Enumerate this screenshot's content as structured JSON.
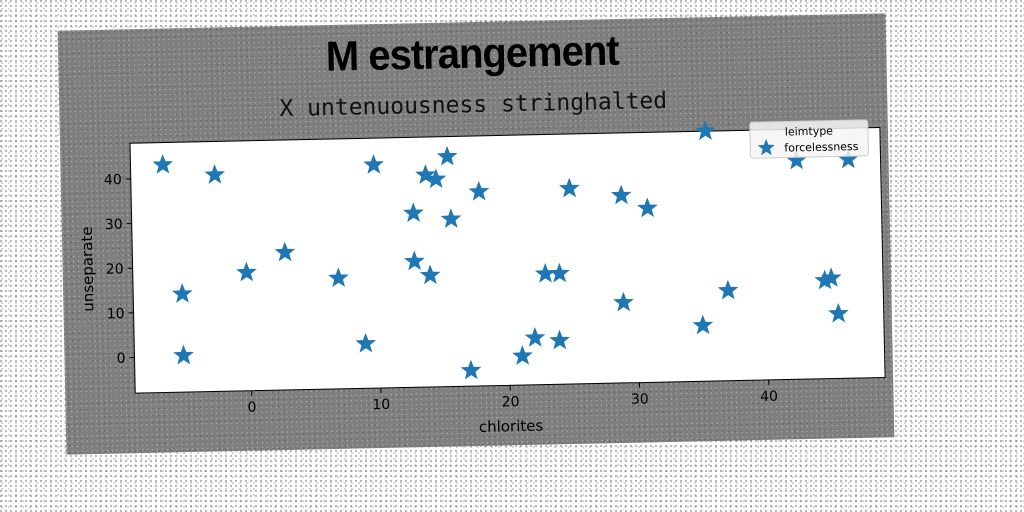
{
  "chart_data": {
    "type": "scatter",
    "suptitle": "M estrangement",
    "title": "X untenuousness stringhalted",
    "xlabel": "chlorites",
    "ylabel": "unseparate",
    "xlim": [
      -9,
      49
    ],
    "ylim": [
      -8,
      48
    ],
    "xticks": [
      0,
      10,
      20,
      30,
      40
    ],
    "yticks": [
      0,
      10,
      20,
      30,
      40
    ],
    "grid": false,
    "legend": {
      "title": "leimtype",
      "placement": "top-right",
      "entries": [
        "forcelessness"
      ]
    },
    "series": [
      {
        "name": "forcelessness",
        "color": "#1f77b4",
        "marker": "star",
        "x": [
          -6.5,
          -2.5,
          -5.2,
          -5.2,
          -0.2,
          2.8,
          6.9,
          8.9,
          9.8,
          12.8,
          12.8,
          13.8,
          14.0,
          14.6,
          15.5,
          15.7,
          17.9,
          17.0,
          21.0,
          22.0,
          22.9,
          23.9,
          24.0,
          24.9,
          28.9,
          28.9,
          30.9,
          35.0,
          35.5,
          37.0,
          42.5,
          44.5,
          45.0,
          45.5,
          46.5
        ],
        "y": [
          43.0,
          40.5,
          14.0,
          0.2,
          18.5,
          22.8,
          16.8,
          2.0,
          42.0,
          31.0,
          20.2,
          39.5,
          17.0,
          38.5,
          43.5,
          29.5,
          35.5,
          -4.5,
          -1.5,
          2.5,
          16.8,
          1.8,
          16.8,
          35.8,
          34.0,
          10.0,
          31.0,
          4.5,
          48.0,
          12.2,
          41.0,
          14.0,
          14.5,
          6.5,
          41.0
        ]
      }
    ]
  }
}
